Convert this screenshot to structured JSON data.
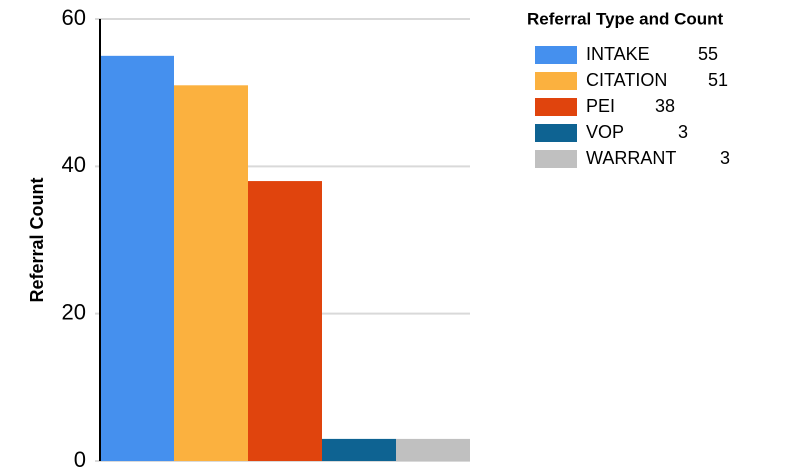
{
  "chart_data": {
    "type": "bar",
    "ylabel": "Referral Count",
    "legend_title": "Referral Type and Count",
    "categories": [
      "INTAKE",
      "CITATION",
      "PEI",
      "VOP",
      "WARRANT"
    ],
    "values": [
      55,
      51,
      38,
      3,
      3
    ],
    "colors": [
      "#4590ee",
      "#fbb13f",
      "#e0440d",
      "#0e6392",
      "#c0c0c0"
    ],
    "ylim": [
      0,
      60
    ],
    "yticks": [
      0,
      20,
      40,
      60
    ],
    "grid": true,
    "legend": "right"
  }
}
